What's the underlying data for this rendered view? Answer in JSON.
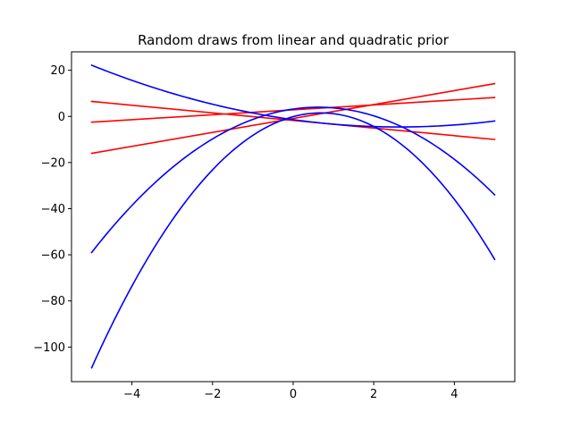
{
  "chart_data": {
    "type": "line",
    "title": "Random draws from linear and quadratic prior",
    "xlabel": "",
    "ylabel": "",
    "xlim": [
      -5.5,
      5.5
    ],
    "ylim": [
      -115,
      28
    ],
    "grid": false,
    "x_ticks": [
      -4,
      -2,
      0,
      2,
      4
    ],
    "x_tick_labels": [
      "−4",
      "−2",
      "0",
      "2",
      "4"
    ],
    "y_ticks": [
      20,
      0,
      -20,
      -40,
      -60,
      -80,
      -100
    ],
    "y_tick_labels": [
      "20",
      "0",
      "−20",
      "−40",
      "−60",
      "−80",
      "−100"
    ],
    "series": [
      {
        "color": "#ff0000",
        "kind": "linear",
        "x": [
          -5,
          5
        ],
        "y": [
          -2.5,
          8.2
        ]
      },
      {
        "color": "#ff0000",
        "kind": "linear",
        "x": [
          -5,
          5
        ],
        "y": [
          6.5,
          -10.0
        ]
      },
      {
        "color": "#ff0000",
        "kind": "linear",
        "x": [
          -5,
          5
        ],
        "y": [
          -16.0,
          14.2
        ]
      },
      {
        "color": "#0000ff",
        "kind": "quadratic",
        "x": [
          -5,
          0,
          5
        ],
        "y": [
          22.2,
          -1.4,
          -2.0
        ]
      },
      {
        "color": "#0000ff",
        "kind": "quadratic",
        "x": [
          -5,
          0,
          5
        ],
        "y": [
          -59.0,
          3.2,
          -34.0
        ]
      },
      {
        "color": "#0000ff",
        "kind": "quadratic",
        "x": [
          -5,
          0,
          5
        ],
        "y": [
          -109.0,
          -0.1,
          -62.0
        ]
      }
    ]
  }
}
